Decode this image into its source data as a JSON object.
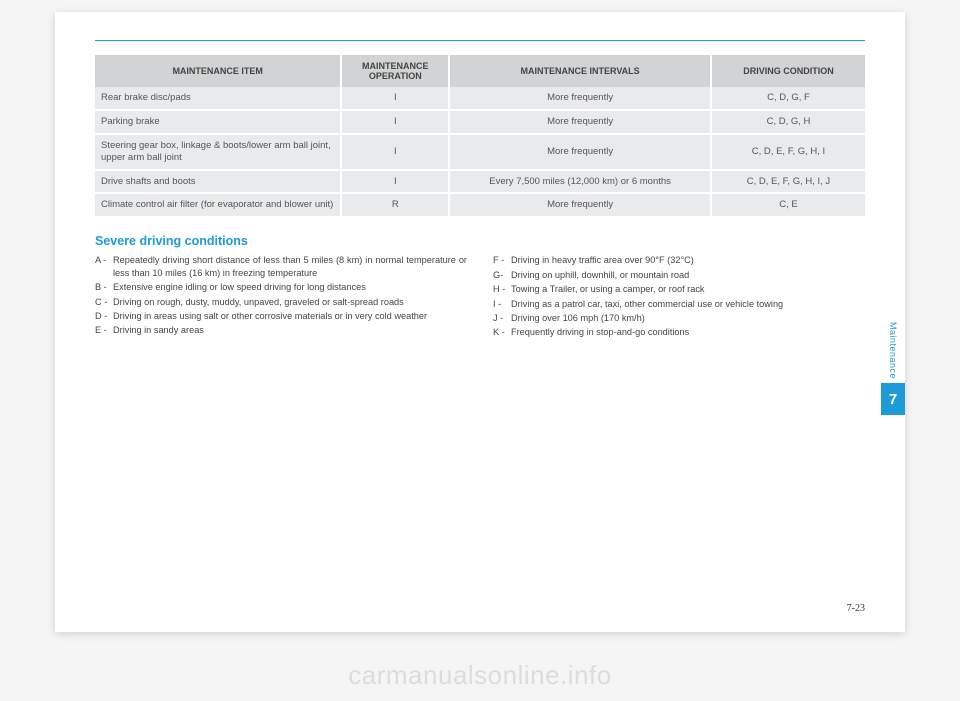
{
  "table": {
    "headers": [
      "MAINTENANCE ITEM",
      "MAINTENANCE OPERATION",
      "MAINTENANCE INTERVALS",
      "DRIVING CONDITION"
    ],
    "rows": [
      {
        "item": "Rear brake disc/pads",
        "op": "I",
        "interval": "More frequently",
        "cond": "C, D, G, F"
      },
      {
        "item": "Parking brake",
        "op": "I",
        "interval": "More frequently",
        "cond": "C, D, G, H"
      },
      {
        "item": "Steering gear box, linkage & boots/lower arm ball joint, upper arm ball joint",
        "op": "I",
        "interval": "More frequently",
        "cond": "C, D, E, F, G, H, I"
      },
      {
        "item": "Drive shafts and boots",
        "op": "I",
        "interval": "Every 7,500 miles (12,000 km) or 6 months",
        "cond": "C, D, E, F, G, H, I, J"
      },
      {
        "item": "Climate control air filter (for evaporator and blower unit)",
        "op": "R",
        "interval": "More frequently",
        "cond": "C, E"
      }
    ]
  },
  "section_title": "Severe driving conditions",
  "conditions_left": [
    {
      "label": "A -",
      "text": "Repeatedly driving short distance of less than 5 miles (8 km) in normal temperature or less than 10 miles (16 km) in freezing temperature"
    },
    {
      "label": "B -",
      "text": "Extensive engine idling or low speed driving for long distances"
    },
    {
      "label": "C -",
      "text": "Driving on rough, dusty, muddy, unpaved, graveled or salt-spread roads"
    },
    {
      "label": "D -",
      "text": "Driving in areas using salt or other corrosive materials or in very cold weather"
    },
    {
      "label": "E -",
      "text": "Driving in sandy areas"
    }
  ],
  "conditions_right": [
    {
      "label": "F -",
      "text": "Driving in heavy traffic area over 90°F (32°C)"
    },
    {
      "label": "G-",
      "text": "Driving on uphill, downhill, or mountain road"
    },
    {
      "label": "H -",
      "text": "Towing a Trailer, or using a camper, or roof rack"
    },
    {
      "label": "I  -",
      "text": "Driving as a patrol car, taxi, other commercial use or vehicle towing"
    },
    {
      "label": "J -",
      "text": "Driving over 106 mph (170 km/h)"
    },
    {
      "label": "K -",
      "text": "Frequently driving in stop-and-go conditions"
    }
  ],
  "side": {
    "label": "Maintenance",
    "chapter": "7"
  },
  "page_number": "7-23",
  "watermark": "carmanualsonline.info"
}
